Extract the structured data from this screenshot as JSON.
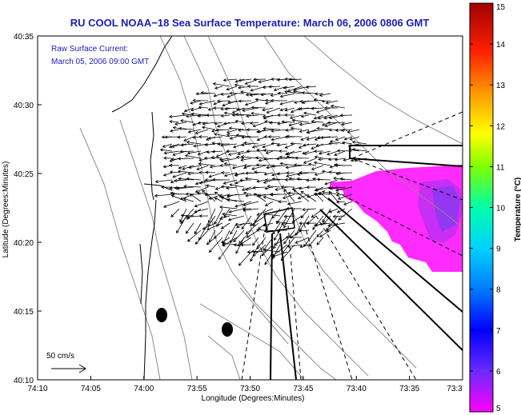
{
  "chart_data": {
    "type": "scatter",
    "title": "RU COOL  NOAA−18  Sea Surface Temperature:  March 06, 2006 0806 GMT",
    "inset_label": [
      "Raw Surface Current:",
      "March 05, 2006 09:00 GMT"
    ],
    "xlabel": "Longitude (Degrees:Minutes)",
    "ylabel": "Latitude (Degrees:Minutes)",
    "x_ticks": [
      "74:10",
      "74:05",
      "74:00",
      "73:55",
      "73:50",
      "73:45",
      "73:40",
      "73:35",
      "73:3"
    ],
    "y_ticks": [
      "40:10",
      "40:15",
      "40:20",
      "40:25",
      "40:30",
      "40:35"
    ],
    "xlim_minutes_west": [
      70,
      30
    ],
    "ylim_minutes_north": [
      10,
      35
    ],
    "scale_arrow_label": "50 cm/s",
    "colorbar": {
      "label": "Temperature (°C)",
      "range": [
        5,
        15
      ],
      "ticks": [
        "5",
        "6",
        "7",
        "8",
        "9",
        "10",
        "11",
        "12",
        "13",
        "14",
        "15"
      ]
    },
    "sst_patch": {
      "temperature_c": 5.5,
      "color": "#ff2bff"
    },
    "current_arrows_count_note": "",
    "grid": false
  },
  "colors": {
    "title": "#1c1cb4",
    "land": "#ffffff",
    "sst_patch": "#ff2bff",
    "sst_cold": "#9933ee",
    "bathymetry": "#8c8c8c"
  }
}
